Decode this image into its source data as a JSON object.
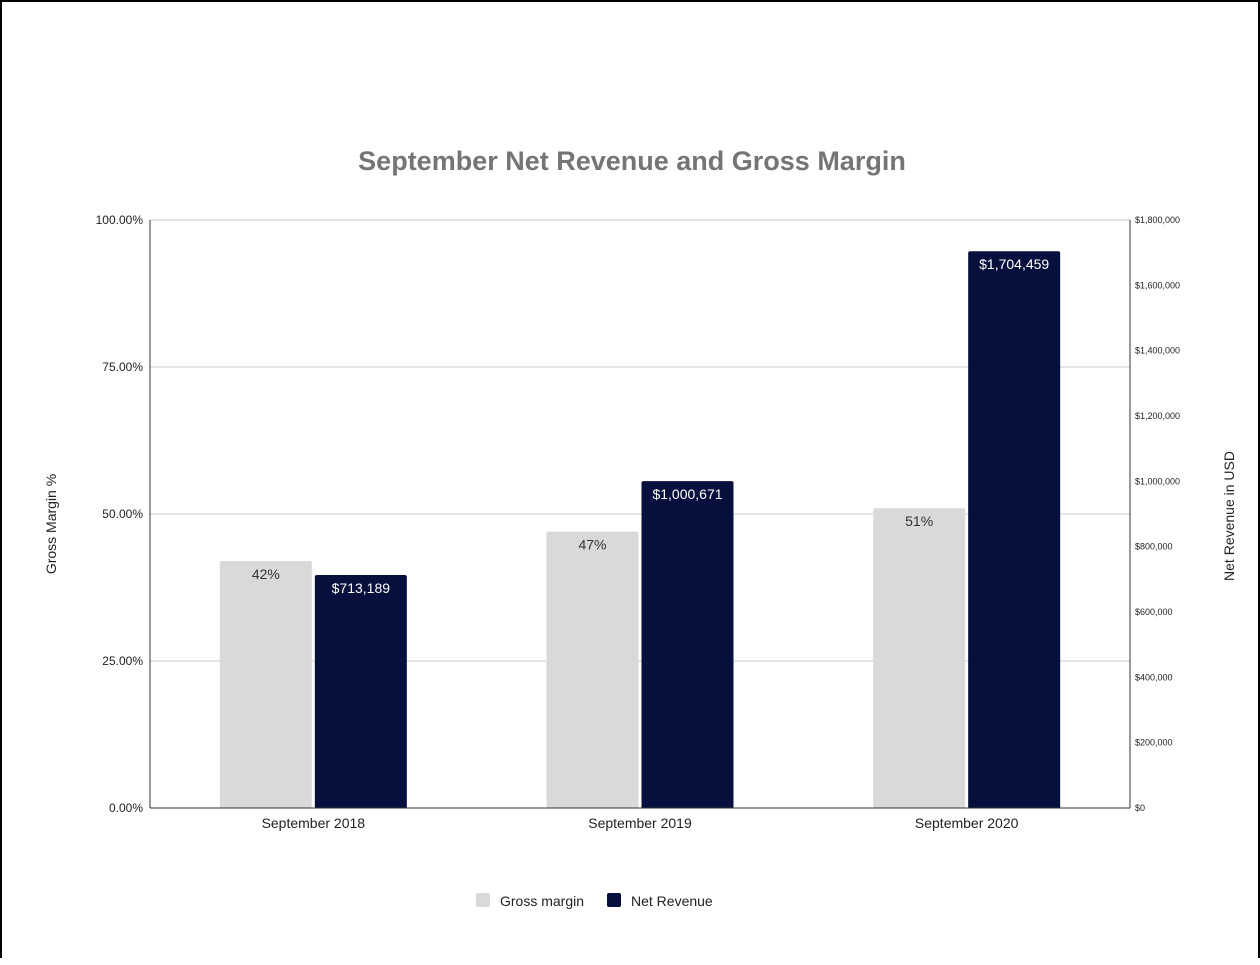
{
  "chart_data": {
    "type": "bar",
    "title": "September Net Revenue and Gross Margin",
    "categories": [
      "September 2018",
      "September 2019",
      "September 2020"
    ],
    "series": [
      {
        "name": "Gross margin",
        "axis": "left",
        "color": "#d9d9d9",
        "values": [
          42,
          47,
          51
        ],
        "data_labels": [
          "42%",
          "47%",
          "51%"
        ]
      },
      {
        "name": "Net Revenue",
        "axis": "right",
        "color": "#07103c",
        "values": [
          713189,
          1000671,
          1704459
        ],
        "data_labels": [
          "$713,189",
          "$1,000,671",
          "$1,704,459"
        ]
      }
    ],
    "y_left": {
      "label": "Gross Margin %",
      "range": [
        0,
        100
      ],
      "ticks": [
        0,
        25,
        50,
        75,
        100
      ],
      "tick_labels": [
        "0.00%",
        "25.00%",
        "50.00%",
        "75.00%",
        "100.00%"
      ]
    },
    "y_right": {
      "label": "Net Revenue in USD",
      "range": [
        0,
        1800000
      ],
      "ticks": [
        0,
        200000,
        400000,
        600000,
        800000,
        1000000,
        1200000,
        1400000,
        1600000,
        1800000
      ],
      "tick_labels": [
        "$0",
        "$200,000",
        "$400,000",
        "$600,000",
        "$800,000",
        "$1,000,000",
        "$1,200,000",
        "$1,400,000",
        "$1,600,000",
        "$1,800,000"
      ]
    },
    "grid": true,
    "legend_position": "bottom",
    "colors": {
      "title": "#757575",
      "text": "#222222",
      "gridline": "#cccccc",
      "axis": "#333333"
    }
  }
}
